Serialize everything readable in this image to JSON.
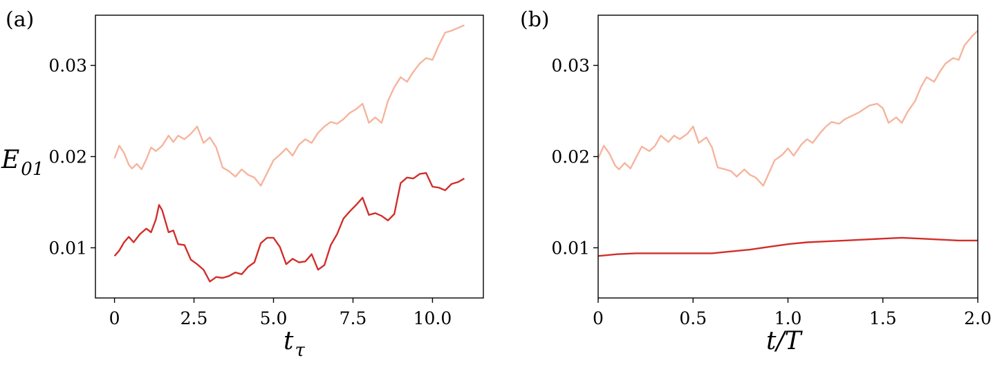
{
  "figure": {
    "colors": {
      "light_series": "#f6b49d",
      "dark_series": "#d22e2b",
      "axes": "#000000"
    }
  },
  "chart_data": [
    {
      "type": "line",
      "panel_label": "(a)",
      "xlabel": "t",
      "xlabel_sub": "τ",
      "ylabel": "E",
      "ylabel_sub": "01",
      "xlim": [
        -0.6,
        11.6
      ],
      "ylim": [
        0.0045,
        0.0355
      ],
      "xticks": [
        0,
        2.5,
        5.0,
        7.5,
        10.0
      ],
      "xtick_labels": [
        "0",
        "2.5",
        "5.0",
        "7.5",
        "10.0"
      ],
      "yticks": [
        0.01,
        0.02,
        0.03
      ],
      "ytick_labels": [
        "0.01",
        "0.02",
        "0.03"
      ],
      "series": [
        {
          "color": "#f6b49d",
          "x": [
            0,
            0.15,
            0.3,
            0.45,
            0.55,
            0.7,
            0.85,
            1.0,
            1.15,
            1.3,
            1.5,
            1.7,
            1.85,
            2.0,
            2.2,
            2.4,
            2.6,
            2.8,
            3.0,
            3.2,
            3.4,
            3.6,
            3.8,
            4.0,
            4.2,
            4.4,
            4.6,
            4.8,
            5.0,
            5.2,
            5.4,
            5.6,
            5.8,
            6.0,
            6.2,
            6.4,
            6.6,
            6.8,
            7.0,
            7.2,
            7.4,
            7.6,
            7.8,
            8.0,
            8.2,
            8.4,
            8.6,
            8.8,
            9.0,
            9.2,
            9.4,
            9.6,
            9.8,
            10.0,
            10.2,
            10.4,
            10.6,
            10.8,
            11.0
          ],
          "y": [
            0.0198,
            0.0212,
            0.0204,
            0.0191,
            0.0187,
            0.0192,
            0.0186,
            0.0197,
            0.021,
            0.0206,
            0.0212,
            0.0223,
            0.0216,
            0.0223,
            0.0219,
            0.0225,
            0.0233,
            0.0215,
            0.0221,
            0.021,
            0.0188,
            0.0184,
            0.0178,
            0.0186,
            0.018,
            0.0177,
            0.0168,
            0.0182,
            0.0196,
            0.0202,
            0.0209,
            0.0201,
            0.0213,
            0.0219,
            0.0215,
            0.0226,
            0.0233,
            0.0238,
            0.0236,
            0.0241,
            0.0248,
            0.0252,
            0.0258,
            0.0237,
            0.0243,
            0.0237,
            0.0261,
            0.0276,
            0.0287,
            0.0282,
            0.0293,
            0.0302,
            0.0308,
            0.0306,
            0.0322,
            0.0336,
            0.0338,
            0.0341,
            0.0344
          ]
        },
        {
          "color": "#d22e2b",
          "x": [
            0,
            0.15,
            0.3,
            0.45,
            0.6,
            0.8,
            1.0,
            1.15,
            1.3,
            1.4,
            1.5,
            1.7,
            1.85,
            2.0,
            2.2,
            2.4,
            2.6,
            2.8,
            3.0,
            3.2,
            3.4,
            3.6,
            3.8,
            4.0,
            4.2,
            4.4,
            4.6,
            4.8,
            5.0,
            5.2,
            5.4,
            5.6,
            5.8,
            6.0,
            6.2,
            6.4,
            6.6,
            6.8,
            7.0,
            7.2,
            7.4,
            7.6,
            7.8,
            8.0,
            8.2,
            8.4,
            8.6,
            8.8,
            9.0,
            9.2,
            9.4,
            9.6,
            9.8,
            10.0,
            10.2,
            10.4,
            10.6,
            10.8,
            11.0
          ],
          "y": [
            0.0091,
            0.0097,
            0.0106,
            0.0112,
            0.0106,
            0.0115,
            0.0121,
            0.0117,
            0.0131,
            0.0147,
            0.0141,
            0.0117,
            0.0119,
            0.0104,
            0.0103,
            0.0087,
            0.0082,
            0.0076,
            0.0063,
            0.0068,
            0.0067,
            0.0069,
            0.0073,
            0.0071,
            0.0079,
            0.0084,
            0.0105,
            0.0111,
            0.0111,
            0.0101,
            0.0082,
            0.0088,
            0.0084,
            0.0085,
            0.0093,
            0.0076,
            0.0081,
            0.0103,
            0.0115,
            0.0132,
            0.014,
            0.0147,
            0.0155,
            0.0136,
            0.0138,
            0.0135,
            0.013,
            0.0137,
            0.0171,
            0.0177,
            0.0176,
            0.0181,
            0.0182,
            0.0167,
            0.0166,
            0.0163,
            0.017,
            0.0172,
            0.0176
          ]
        }
      ]
    },
    {
      "type": "line",
      "panel_label": "(b)",
      "xlabel": "t/T",
      "ylabel": "",
      "xlim": [
        0,
        2.0
      ],
      "ylim": [
        0.0045,
        0.0355
      ],
      "xticks": [
        0,
        0.5,
        1.0,
        1.5,
        2.0
      ],
      "xtick_labels": [
        "0",
        "0.5",
        "1.0",
        "1.5",
        "2.0"
      ],
      "yticks": [
        0.01,
        0.02,
        0.03
      ],
      "ytick_labels": [
        "0.01",
        "0.02",
        "0.03"
      ],
      "series": [
        {
          "color": "#f6b49d",
          "x": [
            0,
            0.03,
            0.06,
            0.09,
            0.11,
            0.14,
            0.17,
            0.2,
            0.23,
            0.27,
            0.3,
            0.33,
            0.37,
            0.4,
            0.43,
            0.47,
            0.5,
            0.53,
            0.57,
            0.6,
            0.63,
            0.67,
            0.7,
            0.73,
            0.77,
            0.8,
            0.83,
            0.87,
            0.9,
            0.93,
            0.97,
            1.0,
            1.03,
            1.07,
            1.1,
            1.13,
            1.17,
            1.2,
            1.23,
            1.27,
            1.3,
            1.33,
            1.37,
            1.4,
            1.43,
            1.47,
            1.5,
            1.53,
            1.57,
            1.6,
            1.63,
            1.67,
            1.7,
            1.73,
            1.77,
            1.8,
            1.83,
            1.87,
            1.9,
            1.93,
            1.97,
            2.0
          ],
          "y": [
            0.0198,
            0.0212,
            0.0203,
            0.019,
            0.0186,
            0.0193,
            0.0187,
            0.0199,
            0.0211,
            0.0206,
            0.0212,
            0.0223,
            0.0216,
            0.0223,
            0.0219,
            0.0225,
            0.0233,
            0.0215,
            0.0221,
            0.021,
            0.0188,
            0.0186,
            0.0184,
            0.0178,
            0.0186,
            0.018,
            0.0177,
            0.0168,
            0.0182,
            0.0196,
            0.0202,
            0.0209,
            0.0201,
            0.0213,
            0.0219,
            0.0215,
            0.0226,
            0.0233,
            0.0238,
            0.0236,
            0.0241,
            0.0244,
            0.0248,
            0.0252,
            0.0256,
            0.0258,
            0.0253,
            0.0237,
            0.0243,
            0.0237,
            0.0249,
            0.0261,
            0.0276,
            0.0287,
            0.0282,
            0.0293,
            0.0302,
            0.0308,
            0.0306,
            0.0322,
            0.0332,
            0.0338
          ]
        },
        {
          "color": "#d22e2b",
          "x": [
            0,
            0.1,
            0.2,
            0.3,
            0.4,
            0.5,
            0.6,
            0.7,
            0.8,
            0.9,
            1.0,
            1.1,
            1.2,
            1.3,
            1.4,
            1.5,
            1.6,
            1.7,
            1.8,
            1.9,
            2.0
          ],
          "y": [
            0.0091,
            0.0093,
            0.0094,
            0.0094,
            0.0094,
            0.0094,
            0.0094,
            0.0096,
            0.0098,
            0.0101,
            0.0104,
            0.0106,
            0.0107,
            0.0108,
            0.0109,
            0.011,
            0.0111,
            0.011,
            0.0109,
            0.0108,
            0.0108
          ]
        }
      ]
    }
  ]
}
